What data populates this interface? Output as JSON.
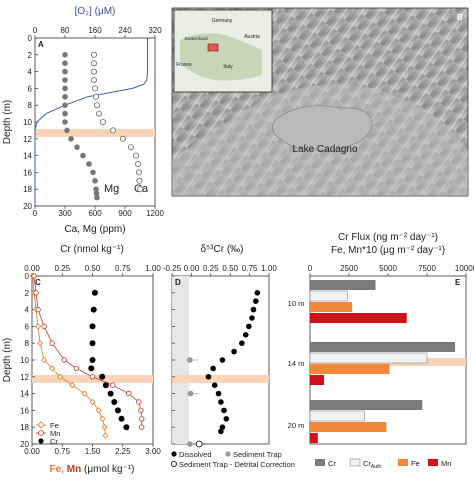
{
  "figure": {
    "panels": [
      {
        "letter": "A",
        "top_axis_label": "[O₂] (μM)",
        "bottom_axis_label": "Ca, Mg (ppm)",
        "y_axis_label": "Depth (m)",
        "series_labels": [
          "Mg",
          "Ca"
        ],
        "top_ticks": [
          "0",
          "80",
          "160",
          "240",
          "320"
        ],
        "bottom_ticks": [
          "0",
          "300",
          "600",
          "900",
          "1200"
        ],
        "y_ticks": [
          "0",
          "2",
          "4",
          "6",
          "8",
          "10",
          "12",
          "14",
          "16",
          "18",
          "20"
        ]
      },
      {
        "letter": "B",
        "map_labels": [
          "Lake Cadagno"
        ],
        "inset_labels": [
          "Germany",
          "Switzerland",
          "Italy",
          "France",
          "Austria"
        ]
      },
      {
        "letter": "C",
        "top_axis_label": "Cr (nmol kg⁻¹)",
        "bottom_axis_label_fe": "Fe,",
        "bottom_axis_label_mn": "Mn",
        "bottom_axis_label_rest": "(μmol kg⁻¹)",
        "y_axis_label": "Depth (m)",
        "top_ticks": [
          "0.00",
          "0.25",
          "0.50",
          "0.75",
          "1.00"
        ],
        "bottom_ticks": [
          "0.00",
          "0.75",
          "1.50",
          "2.25",
          "3.00"
        ],
        "y_ticks": [
          "0",
          "2",
          "4",
          "6",
          "8",
          "10",
          "12",
          "14",
          "16",
          "18",
          "20"
        ],
        "legend": [
          "Fe",
          "Mn",
          "Cr"
        ]
      },
      {
        "letter": "D",
        "top_axis_label": "δ⁵³Cr (‰)",
        "top_ticks": [
          "-0.25",
          "0.00",
          "0.25",
          "0.50",
          "0.75",
          "1.00"
        ],
        "legend": [
          "Dissolved",
          "Sediment Trap",
          "Sediment Trap - Detrital Correction"
        ]
      },
      {
        "letter": "E",
        "top_axis_label_1": "Cr Flux (ng m⁻² day⁻¹)",
        "top_axis_label_2": "Fe, Mn*10 (μg m⁻² day⁻¹)",
        "top_ticks": [
          "0",
          "2500",
          "5000",
          "7500",
          "10000"
        ],
        "depth_labels": [
          "10 m",
          "14 m",
          "20 m"
        ],
        "legend": [
          "Cr",
          "Cr",
          "Fe",
          "Mn"
        ],
        "legend_sub": "Auth"
      }
    ]
  },
  "chart_data": [
    {
      "type": "scatter",
      "panel": "A",
      "series": [
        {
          "name": "Mg",
          "x": [
            300,
            300,
            300,
            300,
            300,
            300,
            300,
            300,
            300,
            320,
            360,
            420,
            480,
            540,
            580,
            600,
            610,
            615,
            620
          ],
          "y": [
            2,
            3,
            4,
            5,
            6,
            7,
            8,
            9,
            10,
            11,
            12,
            13,
            14,
            15,
            16,
            17,
            18,
            18.5,
            19
          ]
        },
        {
          "name": "Ca",
          "x": [
            590,
            590,
            590,
            590,
            600,
            610,
            620,
            640,
            680,
            780,
            880,
            960,
            1010,
            1030,
            1040,
            1045,
            1050
          ],
          "y": [
            2,
            3,
            4,
            5,
            6,
            7,
            8,
            9,
            10,
            11,
            12,
            13,
            14,
            15,
            16,
            17,
            18
          ]
        },
        {
          "name": "O2",
          "x": [
            300,
            300,
            300,
            298,
            290,
            260,
            200,
            140,
            80,
            30,
            5,
            0,
            0
          ],
          "y": [
            0,
            2,
            4,
            5,
            5.5,
            6,
            6.5,
            7,
            8,
            9,
            10,
            11,
            20
          ]
        }
      ],
      "ylim": [
        20,
        0
      ]
    },
    {
      "type": "line",
      "panel": "C",
      "series": [
        {
          "name": "Fe",
          "x": [
            0.02,
            0.05,
            0.1,
            0.15,
            0.2,
            0.3,
            0.5,
            0.7,
            1.0,
            1.3,
            1.5,
            1.65,
            1.75,
            1.8,
            1.82
          ],
          "y": [
            0,
            2,
            4,
            6,
            8,
            10,
            11,
            12,
            13,
            14,
            15,
            16,
            17,
            18,
            19
          ]
        },
        {
          "name": "Mn",
          "x": [
            0.05,
            0.1,
            0.15,
            0.3,
            0.5,
            0.8,
            1.1,
            1.5,
            2.0,
            2.4,
            2.65,
            2.7,
            2.72,
            2.72
          ],
          "y": [
            0,
            2,
            4,
            6,
            8,
            10,
            11,
            12,
            13,
            14,
            15,
            16,
            17,
            18
          ]
        },
        {
          "name": "Cr",
          "x": [
            0.52,
            0.51,
            0.5,
            0.5,
            0.5,
            0.49,
            0.58,
            0.61,
            0.65,
            0.68,
            0.71,
            0.74,
            0.78
          ],
          "y": [
            2,
            4,
            6,
            8,
            10,
            11,
            12,
            13,
            14,
            15,
            16,
            17,
            18
          ]
        }
      ],
      "ylim": [
        20,
        0
      ]
    },
    {
      "type": "scatter",
      "panel": "D",
      "series": [
        {
          "name": "Dissolved",
          "x": [
            0.85,
            0.83,
            0.8,
            0.78,
            0.74,
            0.7,
            0.65,
            0.55,
            0.4,
            0.28,
            0.22,
            0.3,
            0.35,
            0.38,
            0.42,
            0.45,
            0.4,
            0.38
          ],
          "y": [
            2,
            3,
            4,
            5,
            6,
            7,
            8,
            9,
            10,
            11,
            12,
            13,
            14,
            15,
            16,
            17,
            18,
            18.5
          ]
        },
        {
          "name": "Sediment Trap",
          "x": [
            -0.02,
            -0.01,
            -0.02
          ],
          "y": [
            10,
            14,
            20
          ]
        },
        {
          "name": "Sediment Trap - Detrital Correction",
          "x": [
            0.1
          ],
          "y": [
            20
          ]
        }
      ],
      "ylim": [
        20,
        0
      ]
    },
    {
      "type": "bar",
      "panel": "E",
      "categories": [
        "10 m",
        "14 m",
        "20 m"
      ],
      "series": [
        {
          "name": "Cr",
          "values": [
            4200,
            9300,
            7200
          ]
        },
        {
          "name": "Cr Auth",
          "values": [
            2400,
            7500,
            3500
          ]
        },
        {
          "name": "Fe",
          "values": [
            2700,
            5100,
            4900
          ]
        },
        {
          "name": "Mn",
          "values": [
            6200,
            900,
            500
          ]
        }
      ],
      "xlim": [
        0,
        10000
      ]
    }
  ]
}
